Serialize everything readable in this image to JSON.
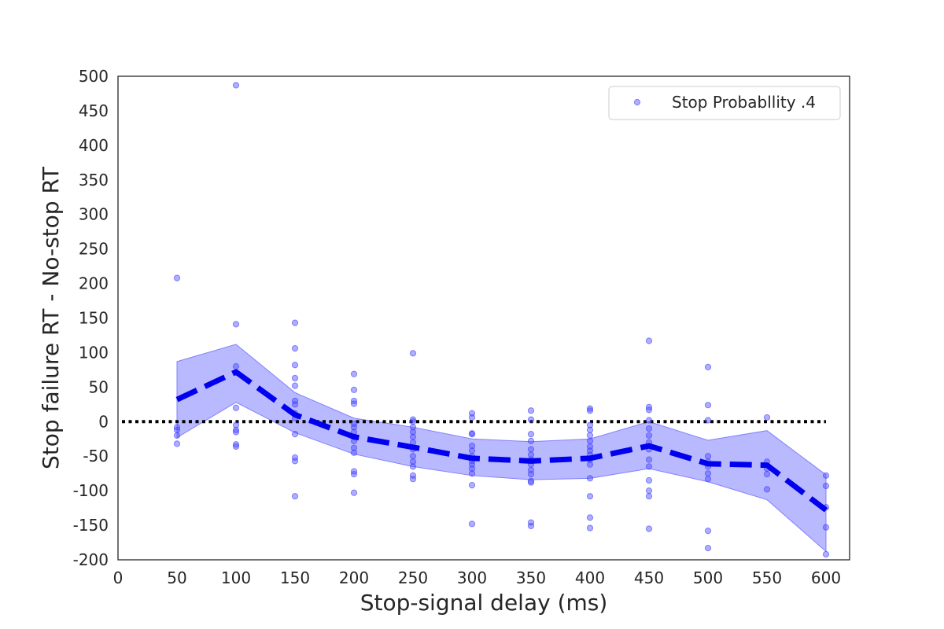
{
  "chart_data": {
    "type": "scatter",
    "title": "",
    "xlabel": "Stop-signal delay (ms)",
    "ylabel": "Stop failure RT - No-stop RT",
    "xlim": [
      0,
      620
    ],
    "ylim": [
      -200,
      500
    ],
    "xticks": [
      0,
      50,
      100,
      150,
      200,
      250,
      300,
      350,
      400,
      450,
      500,
      550,
      600
    ],
    "yticks": [
      500,
      450,
      400,
      350,
      300,
      250,
      200,
      150,
      100,
      50,
      0,
      -50,
      -100,
      -150,
      -200
    ],
    "grid": false,
    "legend": {
      "position": "top-right",
      "entries": [
        "Stop Probabllity .4"
      ]
    },
    "reference_line": {
      "y": 0,
      "style": "dotted",
      "color": "#000000"
    },
    "colors": {
      "points": "#4040ff",
      "mean_line": "#0000ee",
      "band": "#8080ff"
    },
    "series": [
      {
        "name": "Stop Probabllity .4",
        "type": "scatter",
        "points": [
          [
            50,
            208
          ],
          [
            50,
            -8
          ],
          [
            50,
            -12
          ],
          [
            50,
            -20
          ],
          [
            50,
            -32
          ],
          [
            100,
            487
          ],
          [
            100,
            141
          ],
          [
            100,
            80
          ],
          [
            100,
            20
          ],
          [
            100,
            -5
          ],
          [
            100,
            -12
          ],
          [
            100,
            -15
          ],
          [
            100,
            -33
          ],
          [
            100,
            -36
          ],
          [
            150,
            143
          ],
          [
            150,
            106
          ],
          [
            150,
            82
          ],
          [
            150,
            63
          ],
          [
            150,
            52
          ],
          [
            150,
            30
          ],
          [
            150,
            25
          ],
          [
            150,
            12
          ],
          [
            150,
            5
          ],
          [
            150,
            -18
          ],
          [
            150,
            -52
          ],
          [
            150,
            -57
          ],
          [
            150,
            -108
          ],
          [
            200,
            69
          ],
          [
            200,
            46
          ],
          [
            200,
            30
          ],
          [
            200,
            26
          ],
          [
            200,
            -3
          ],
          [
            200,
            -8
          ],
          [
            200,
            -15
          ],
          [
            200,
            -22
          ],
          [
            200,
            -28
          ],
          [
            200,
            -38
          ],
          [
            200,
            -45
          ],
          [
            200,
            -72
          ],
          [
            200,
            -76
          ],
          [
            200,
            -103
          ],
          [
            250,
            99
          ],
          [
            250,
            3
          ],
          [
            250,
            0
          ],
          [
            250,
            -8
          ],
          [
            250,
            -15
          ],
          [
            250,
            -22
          ],
          [
            250,
            -30
          ],
          [
            250,
            -40
          ],
          [
            250,
            -50
          ],
          [
            250,
            -58
          ],
          [
            250,
            -65
          ],
          [
            250,
            -78
          ],
          [
            250,
            -83
          ],
          [
            300,
            12
          ],
          [
            300,
            6
          ],
          [
            300,
            -17
          ],
          [
            300,
            -18
          ],
          [
            300,
            -35
          ],
          [
            300,
            -42
          ],
          [
            300,
            -50
          ],
          [
            300,
            -57
          ],
          [
            300,
            -62
          ],
          [
            300,
            -68
          ],
          [
            300,
            -75
          ],
          [
            300,
            -92
          ],
          [
            300,
            -148
          ],
          [
            350,
            16
          ],
          [
            350,
            3
          ],
          [
            350,
            -18
          ],
          [
            350,
            -28
          ],
          [
            350,
            -40
          ],
          [
            350,
            -48
          ],
          [
            350,
            -55
          ],
          [
            350,
            -62
          ],
          [
            350,
            -70
          ],
          [
            350,
            -76
          ],
          [
            350,
            -86
          ],
          [
            350,
            -88
          ],
          [
            350,
            -146
          ],
          [
            350,
            -151
          ],
          [
            400,
            19
          ],
          [
            400,
            16
          ],
          [
            400,
            -5
          ],
          [
            400,
            -12
          ],
          [
            400,
            -20
          ],
          [
            400,
            -28
          ],
          [
            400,
            -36
          ],
          [
            400,
            -42
          ],
          [
            400,
            -48
          ],
          [
            400,
            -55
          ],
          [
            400,
            -62
          ],
          [
            400,
            -82
          ],
          [
            400,
            -108
          ],
          [
            400,
            -139
          ],
          [
            400,
            -154
          ],
          [
            450,
            117
          ],
          [
            450,
            21
          ],
          [
            450,
            17
          ],
          [
            450,
            2
          ],
          [
            450,
            -10
          ],
          [
            450,
            -20
          ],
          [
            450,
            -30
          ],
          [
            450,
            -40
          ],
          [
            450,
            -55
          ],
          [
            450,
            -65
          ],
          [
            450,
            -85
          ],
          [
            450,
            -100
          ],
          [
            450,
            -108
          ],
          [
            450,
            -155
          ],
          [
            500,
            79
          ],
          [
            500,
            24
          ],
          [
            500,
            2
          ],
          [
            500,
            -50
          ],
          [
            500,
            -58
          ],
          [
            500,
            -65
          ],
          [
            500,
            -75
          ],
          [
            500,
            -83
          ],
          [
            500,
            -158
          ],
          [
            500,
            -183
          ],
          [
            550,
            6
          ],
          [
            550,
            -58
          ],
          [
            550,
            -68
          ],
          [
            550,
            -76
          ],
          [
            550,
            -98
          ],
          [
            600,
            -78
          ],
          [
            600,
            -93
          ],
          [
            600,
            -124
          ],
          [
            600,
            -153
          ],
          [
            600,
            -192
          ]
        ]
      },
      {
        "name": "",
        "type": "line",
        "style": "dashed",
        "x": [
          50,
          100,
          150,
          200,
          250,
          300,
          350,
          400,
          450,
          500,
          550,
          600
        ],
        "y": [
          32,
          72,
          10,
          -22,
          -37,
          -53,
          -57,
          -53,
          -35,
          -61,
          -63,
          -128
        ]
      },
      {
        "name": "",
        "type": "band",
        "x": [
          50,
          100,
          150,
          200,
          250,
          300,
          350,
          400,
          450,
          500,
          550,
          600
        ],
        "lower": [
          -23,
          28,
          -16,
          -47,
          -65,
          -78,
          -84,
          -82,
          -68,
          -87,
          -113,
          -188
        ],
        "upper": [
          87,
          112,
          42,
          5,
          -8,
          -25,
          -29,
          -25,
          0,
          -27,
          -13,
          -77
        ]
      }
    ]
  }
}
